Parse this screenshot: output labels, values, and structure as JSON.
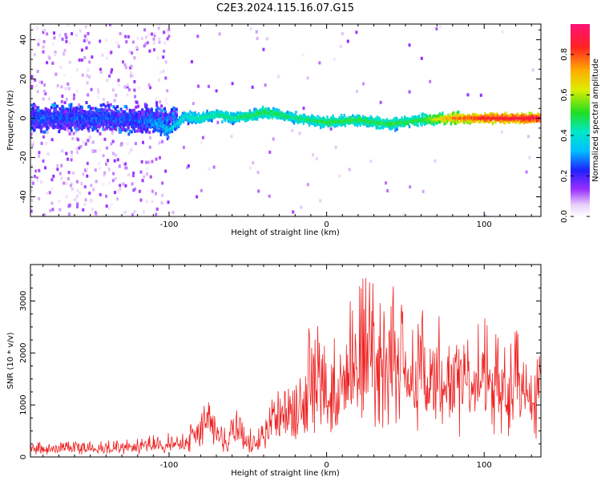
{
  "title": "C2E3.2024.115.16.07.G15",
  "colors": {
    "snr_line": "#ee2222",
    "background": "#ffffff"
  },
  "chart_data": [
    {
      "type": "heatmap",
      "xlabel": "Height of straight line (km)",
      "ylabel": "Frequency (Hz)",
      "xlim": [
        -188,
        136
      ],
      "ylim": [
        -50,
        48
      ],
      "xticks": [
        -100,
        0,
        100
      ],
      "yticks": [
        -40,
        -20,
        0,
        20,
        40
      ],
      "grid": false,
      "colorbar": {
        "label": "Normalized spectral amplitude",
        "range": [
          0.0,
          0.95
        ],
        "ticks": [
          0.0,
          0.2,
          0.4,
          0.6,
          0.8
        ],
        "colormap": "rainbow"
      },
      "ridge_frequency_hz": [
        [
          -188,
          0
        ],
        [
          -140,
          0
        ],
        [
          -110,
          -2
        ],
        [
          -100,
          -6
        ],
        [
          -95,
          -3
        ],
        [
          -90,
          1
        ],
        [
          -80,
          0
        ],
        [
          -70,
          2
        ],
        [
          -60,
          0
        ],
        [
          -50,
          1
        ],
        [
          -40,
          3
        ],
        [
          -30,
          2
        ],
        [
          -20,
          0
        ],
        [
          0,
          -2
        ],
        [
          20,
          -1
        ],
        [
          40,
          -3
        ],
        [
          60,
          -1
        ],
        [
          80,
          0
        ],
        [
          100,
          0
        ],
        [
          136,
          0
        ]
      ],
      "ridge_amplitude": [
        [
          -188,
          0.25
        ],
        [
          -120,
          0.25
        ],
        [
          -100,
          0.35
        ],
        [
          -80,
          0.45
        ],
        [
          -60,
          0.45
        ],
        [
          -40,
          0.5
        ],
        [
          -20,
          0.45
        ],
        [
          0,
          0.5
        ],
        [
          20,
          0.5
        ],
        [
          40,
          0.5
        ],
        [
          60,
          0.5
        ],
        [
          80,
          0.75
        ],
        [
          100,
          0.85
        ],
        [
          136,
          0.9
        ]
      ]
    },
    {
      "type": "line",
      "xlabel": "Height of straight line (km)",
      "ylabel": "SNR (10 * v/v)",
      "xlim": [
        -188,
        136
      ],
      "ylim": [
        0,
        3700
      ],
      "xticks": [
        -100,
        0,
        100
      ],
      "yticks": [
        0,
        1000,
        2000,
        3000
      ],
      "grid": false,
      "series": [
        {
          "x": [
            -188,
            -150,
            -120,
            -100,
            -90,
            -80,
            -75,
            -70,
            -65,
            -58,
            -50,
            -40,
            -35,
            -30,
            -20,
            -15,
            -10,
            -5,
            0,
            10,
            20,
            30,
            40,
            50,
            60,
            70,
            80,
            90,
            100,
            110,
            120,
            130,
            136
          ],
          "y": [
            150,
            160,
            180,
            280,
            250,
            500,
            700,
            450,
            250,
            650,
            300,
            300,
            800,
            650,
            850,
            1200,
            1500,
            1400,
            1300,
            1350,
            1800,
            2100,
            1800,
            1750,
            1600,
            1550,
            1450,
            1400,
            1350,
            1250,
            1250,
            1200,
            1150
          ],
          "peak": [
            -188,
            -150,
            -120,
            -100,
            -90,
            -80,
            -75,
            -70,
            -65,
            -58,
            -50,
            -40,
            -35,
            -30,
            -20,
            -15,
            -10,
            -5,
            0,
            10,
            20,
            30,
            40,
            50,
            60,
            70,
            80,
            90,
            100,
            110,
            120,
            130,
            136
          ],
          "peak_values": [
            300,
            300,
            350,
            500,
            450,
            950,
            1100,
            800,
            550,
            1000,
            550,
            700,
            1200,
            1300,
            1400,
            2400,
            2700,
            2600,
            2300,
            2600,
            3500,
            3700,
            3400,
            3000,
            2900,
            2800,
            2500,
            2400,
            2700,
            2300,
            2500,
            2450,
            2200
          ]
        }
      ]
    }
  ]
}
